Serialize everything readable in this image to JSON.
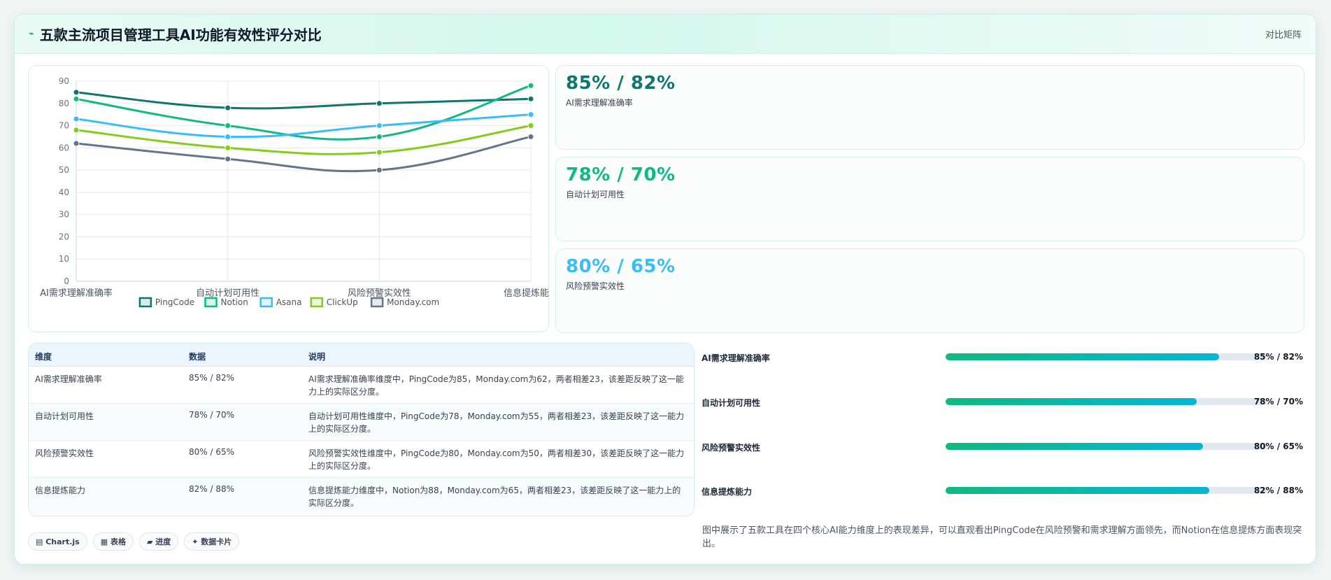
{
  "header": {
    "icon": "sparkle-icon",
    "title": "五款主流项目管理工具AI功能有效性评分对比",
    "right_label": "对比矩阵"
  },
  "chart_data": {
    "type": "line",
    "categories": [
      "AI需求理解准确率",
      "自动计划可用性",
      "风险预警实效性",
      "信息提炼能力"
    ],
    "ylim": [
      0,
      90
    ],
    "yticks": [
      0,
      10,
      20,
      30,
      40,
      50,
      60,
      70,
      80,
      90
    ],
    "grid": true,
    "legend_position": "bottom",
    "series": [
      {
        "name": "PingCode",
        "color": "#0f766e",
        "values": [
          85,
          78,
          80,
          82
        ]
      },
      {
        "name": "Notion",
        "color": "#10b981",
        "values": [
          82,
          70,
          65,
          88
        ]
      },
      {
        "name": "Asana",
        "color": "#38bdf8",
        "values": [
          73,
          65,
          70,
          75
        ]
      },
      {
        "name": "ClickUp",
        "color": "#84cc16",
        "values": [
          68,
          60,
          58,
          70
        ]
      },
      {
        "name": "Monday.com",
        "color": "#64748b",
        "values": [
          62,
          55,
          50,
          65
        ]
      }
    ]
  },
  "kpis": [
    {
      "value": "85% / 82%",
      "label": "AI需求理解准确率",
      "color": "#0f766e"
    },
    {
      "value": "78% / 70%",
      "label": "自动计划可用性",
      "color": "#10b981"
    },
    {
      "value": "80% / 65%",
      "label": "风险预警实效性",
      "color": "#38bdf8"
    }
  ],
  "table": {
    "headers": [
      "维度",
      "数据",
      "说明"
    ],
    "rows": [
      {
        "dim": "AI需求理解准确率",
        "data": "85% / 82%",
        "desc": "AI需求理解准确率维度中，PingCode为85，Monday.com为62，两者相差23，该差距反映了这一能力上的实际区分度。"
      },
      {
        "dim": "自动计划可用性",
        "data": "78% / 70%",
        "desc": "自动计划可用性维度中，PingCode为78，Monday.com为55，两者相差23，该差距反映了这一能力上的实际区分度。"
      },
      {
        "dim": "风险预警实效性",
        "data": "80% / 65%",
        "desc": "风险预警实效性维度中，PingCode为80，Monday.com为50，两者相差30，该差距反映了这一能力上的实际区分度。"
      },
      {
        "dim": "信息提炼能力",
        "data": "82% / 88%",
        "desc": "信息提炼能力维度中，Notion为88，Monday.com为65，两者相差23，该差距反映了这一能力上的实际区分度。"
      }
    ]
  },
  "progress": [
    {
      "label": "AI需求理解准确率",
      "value": "85% / 82%",
      "fraction": 0.85
    },
    {
      "label": "自动计划可用性",
      "value": "78% / 70%",
      "fraction": 0.78
    },
    {
      "label": "风险预警实效性",
      "value": "80% / 65%",
      "fraction": 0.8
    },
    {
      "label": "信息提炼能力",
      "value": "82% / 88%",
      "fraction": 0.82
    }
  ],
  "note": "图中展示了五款工具在四个核心AI能力维度上的表现差异，可以直观看出PingCode在风险预警和需求理解方面领先，而Notion在信息提炼方面表现突出。",
  "tags": [
    {
      "label": "▤ Chart.js",
      "icon": "chart-icon"
    },
    {
      "label": "▦ 表格",
      "icon": "table-icon"
    },
    {
      "label": "▰ 进度",
      "icon": "progress-icon"
    },
    {
      "label": "✦ 数据卡片",
      "icon": "sparkle-icon"
    }
  ]
}
